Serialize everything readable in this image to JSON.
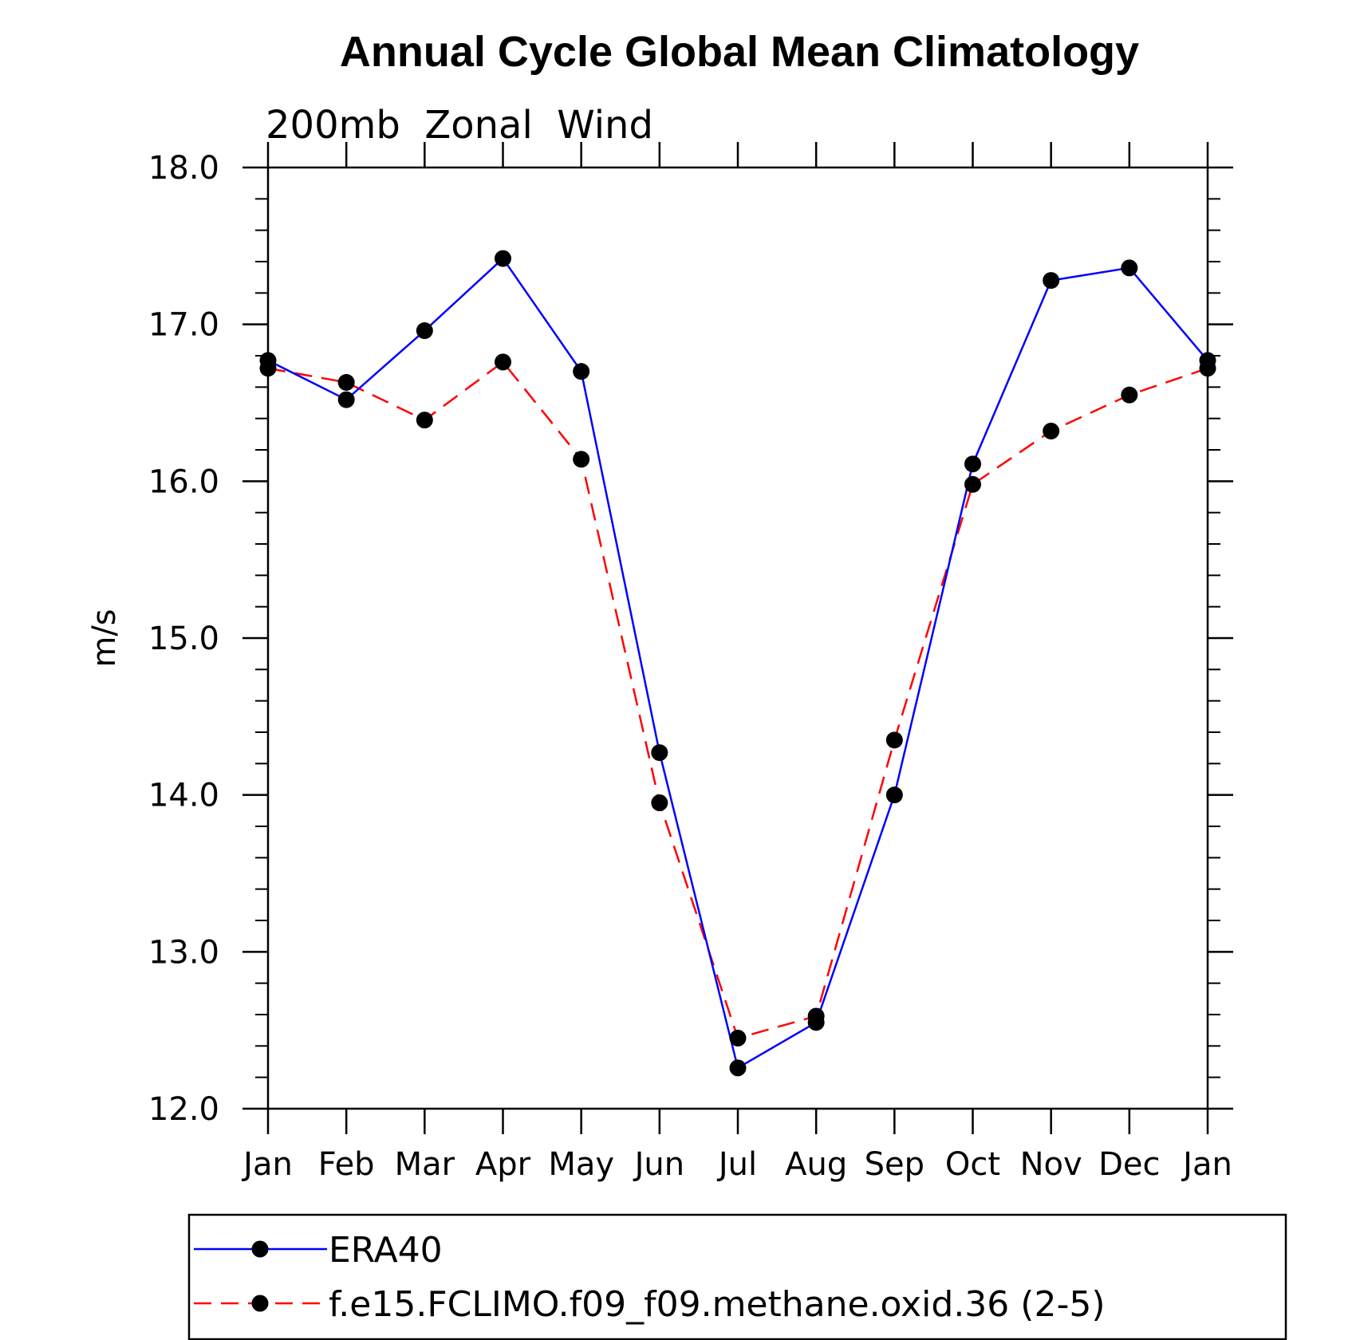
{
  "chart_data": {
    "type": "line",
    "title": "Annual Cycle Global Mean Climatology",
    "subtitle": "200mb  Zonal  Wind",
    "xlabel": "",
    "ylabel": "m/s",
    "categories": [
      "Jan",
      "Feb",
      "Mar",
      "Apr",
      "May",
      "Jun",
      "Jul",
      "Aug",
      "Sep",
      "Oct",
      "Nov",
      "Dec",
      "Jan"
    ],
    "ylim": [
      12.0,
      18.0
    ],
    "yticks": [
      "12.0",
      "13.0",
      "14.0",
      "15.0",
      "16.0",
      "17.0",
      "18.0"
    ],
    "grid": false,
    "legend_position": "bottom",
    "series": [
      {
        "name": "ERA40",
        "color": "#0000ff",
        "dash": "solid",
        "values": [
          16.77,
          16.52,
          16.96,
          17.42,
          16.7,
          14.27,
          12.26,
          12.55,
          14.0,
          16.11,
          17.28,
          17.36,
          16.77
        ]
      },
      {
        "name": "f.e15.FCLIMO.f09_f09.methane.oxid.36 (2-5)",
        "color": "#ff0000",
        "dash": "dashed",
        "values": [
          16.72,
          16.63,
          16.39,
          16.76,
          16.14,
          13.95,
          12.45,
          12.59,
          14.35,
          15.98,
          16.32,
          16.55,
          16.72
        ]
      }
    ]
  }
}
